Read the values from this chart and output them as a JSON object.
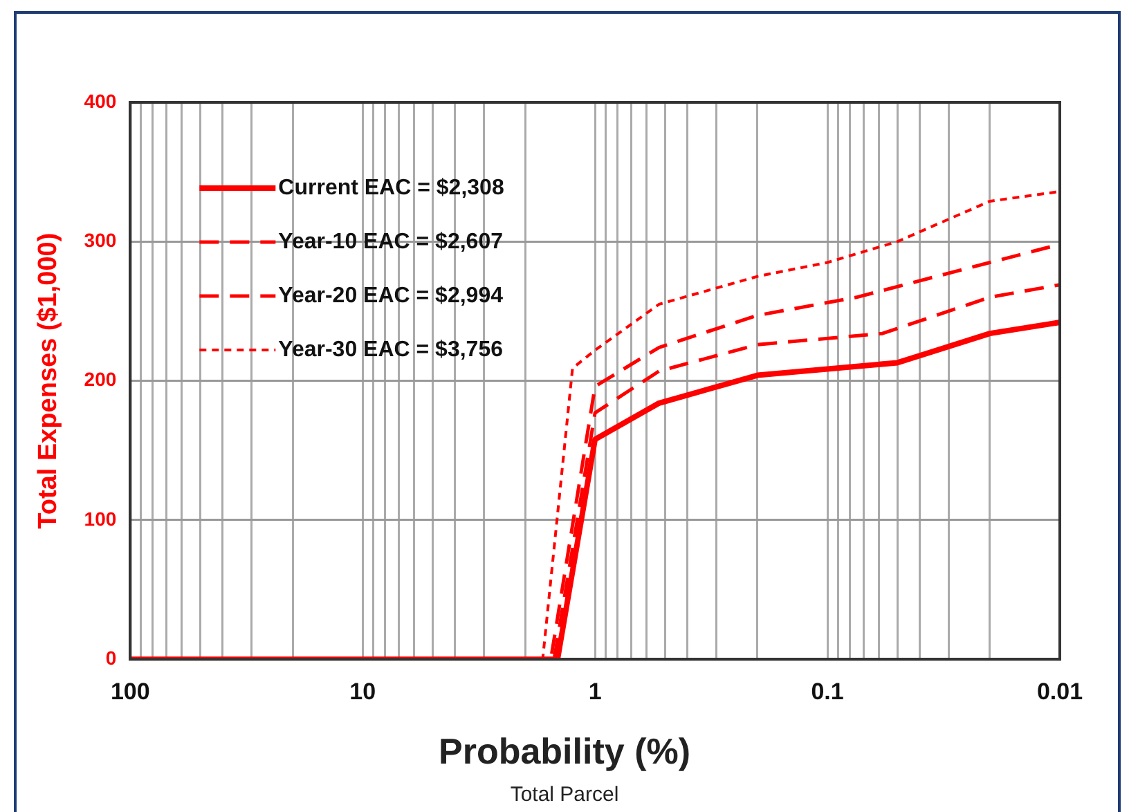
{
  "chart_data": {
    "type": "line",
    "xlabel": "Probability (%)",
    "ylabel": "Total Expenses ($1,000)",
    "annotations": [
      "Total Parcel"
    ],
    "log": "x",
    "grid": true,
    "legend": "top left",
    "marker": "none",
    "xlim": [
      100,
      0.01
    ],
    "ylim": [
      0,
      400
    ],
    "yticks": [
      0,
      100,
      200,
      300,
      400
    ],
    "xticks": [
      100,
      {
        "value": 90,
        "label": null
      },
      {
        "value": 80,
        "label": null
      },
      {
        "value": 70,
        "label": null
      },
      {
        "value": 60,
        "label": null
      },
      {
        "value": 50,
        "label": null
      },
      {
        "value": 40,
        "label": null
      },
      {
        "value": 30,
        "label": null
      },
      {
        "value": 20,
        "label": null
      },
      10,
      {
        "value": 9,
        "label": null
      },
      {
        "value": 8,
        "label": null
      },
      {
        "value": 7,
        "label": null
      },
      {
        "value": 6,
        "label": null
      },
      {
        "value": 5,
        "label": null
      },
      {
        "value": 4,
        "label": null
      },
      {
        "value": 3,
        "label": null
      },
      {
        "value": 2,
        "label": null
      },
      1,
      {
        "value": 0.9,
        "label": null
      },
      {
        "value": 0.8,
        "label": null
      },
      {
        "value": 0.7,
        "label": null
      },
      {
        "value": 0.6,
        "label": null
      },
      {
        "value": 0.5,
        "label": null
      },
      {
        "value": 0.4,
        "label": null
      },
      {
        "value": 0.3,
        "label": null
      },
      {
        "value": 0.2,
        "label": null
      },
      0.1,
      {
        "value": 0.09,
        "label": null
      },
      {
        "value": 0.08,
        "label": null
      },
      {
        "value": 0.07,
        "label": null
      },
      {
        "value": 0.06,
        "label": null
      },
      {
        "value": 0.05,
        "label": null
      },
      {
        "value": 0.04,
        "label": null
      },
      {
        "value": 0.03,
        "label": null
      },
      {
        "value": 0.02,
        "label": null
      },
      0.01
    ],
    "series": [
      {
        "name": "Current EAC = $2,308",
        "color": "#ff0000",
        "line_style": "solid",
        "x": [
          100,
          1.45,
          1,
          0.53,
          0.2,
          0.05,
          0.02,
          0.01
        ],
        "values": [
          0,
          0,
          158,
          184,
          204,
          213,
          234,
          242
        ]
      },
      {
        "name": "Year-10 EAC = $2,607",
        "color": "#ff0000",
        "line_style": "dashed",
        "x": [
          100,
          1.5,
          1,
          0.53,
          0.2,
          0.058,
          0.02,
          0.01
        ],
        "values": [
          0,
          0,
          177,
          207,
          226,
          234,
          260,
          269
        ]
      },
      {
        "name": "Year-20 EAC = $2,994",
        "color": "#ff0000",
        "line_style": "dashed",
        "x": [
          100,
          1.55,
          1,
          0.53,
          0.2,
          0.075,
          0.02,
          0.01
        ],
        "values": [
          0,
          0,
          196,
          224,
          247,
          260,
          285,
          298
        ]
      },
      {
        "name": "Year-30 EAC = $3,756",
        "color": "#ff0000",
        "line_style": "dotted",
        "x": [
          100,
          1.68,
          1.25,
          1,
          0.53,
          0.2,
          0.1,
          0.05,
          0.02,
          0.01
        ],
        "values": [
          0,
          0,
          209,
          222,
          255,
          275,
          285,
          300,
          329,
          336
        ]
      }
    ]
  }
}
